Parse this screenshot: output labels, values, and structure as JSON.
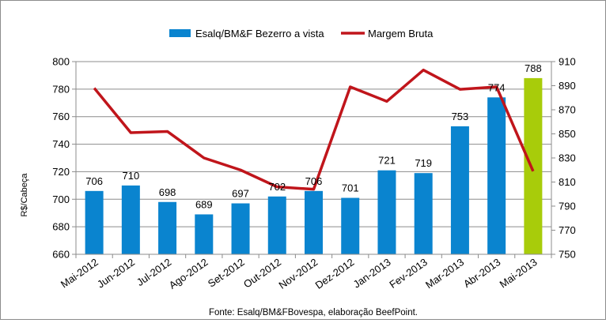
{
  "chart_data": {
    "type": "bar+line",
    "title": "",
    "categories": [
      "Mai-2012",
      "Jun-2012",
      "Jul-2012",
      "Ago-2012",
      "Set-2012",
      "Out-2012",
      "Nov-2012",
      "Dez-2012",
      "Jan-2013",
      "Fev-2013",
      "Mar-2013",
      "Abr-2013",
      "Mai-2013"
    ],
    "series": [
      {
        "name": "Esalq/BM&F Bezerro a vista",
        "type": "bar",
        "axis": "left",
        "color": "#0a84cf",
        "highlight_color": "#a8cc0a",
        "highlight_index": 12,
        "values": [
          706,
          710,
          698,
          689,
          697,
          702,
          706,
          701,
          721,
          719,
          753,
          774,
          788
        ]
      },
      {
        "name": "Margem Bruta",
        "type": "line",
        "axis": "right",
        "color": "#c0151b",
        "values": [
          888,
          851,
          852,
          830,
          820,
          806,
          804,
          889,
          877,
          903,
          887,
          889,
          819
        ]
      }
    ],
    "ylabel": "R$/Cabeça",
    "ylim": [
      660,
      800
    ],
    "yticks": [
      660,
      680,
      700,
      720,
      740,
      760,
      780,
      800
    ],
    "y2lim": [
      750,
      910
    ],
    "y2ticks": [
      750,
      770,
      790,
      810,
      830,
      850,
      870,
      890,
      910
    ],
    "grid": true,
    "legend_position": "top"
  },
  "source_note": "Fonte: Esalq/BM&FBovespa, elaboração BeefPoint."
}
